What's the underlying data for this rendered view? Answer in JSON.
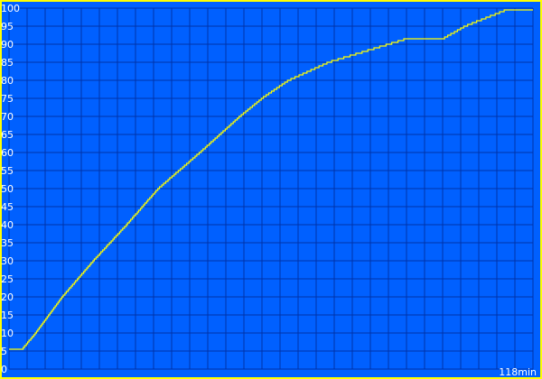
{
  "chart_data": {
    "type": "line",
    "title": "",
    "xlabel": "",
    "ylabel": "",
    "x_end_label": "118min",
    "xlim": [
      0,
      118
    ],
    "ylim": [
      0,
      100
    ],
    "yticks": [
      "0",
      "5",
      "10",
      "15",
      "20",
      "25",
      "30",
      "35",
      "40",
      "45",
      "50",
      "55",
      "60",
      "65",
      "70",
      "75",
      "80",
      "85",
      "90",
      "95",
      "100"
    ],
    "grid": true,
    "line_style": "step",
    "colors": {
      "background": "#0060ff",
      "grid": "#0033aa",
      "line": "#ffff00",
      "text": "#ffffff",
      "border": "#ffff00"
    },
    "series": [
      {
        "x": [
          0,
          3,
          6,
          12,
          19,
          26.5,
          33.6,
          43,
          52,
          57,
          63,
          72,
          85.5,
          89.5,
          97.7,
          102.7,
          112,
          118
        ],
        "y": [
          5.5,
          5.5,
          10,
          20,
          30,
          40,
          50,
          60,
          70,
          75,
          80,
          85,
          90,
          91.5,
          91.5,
          95,
          99.5,
          99.5
        ]
      }
    ]
  }
}
